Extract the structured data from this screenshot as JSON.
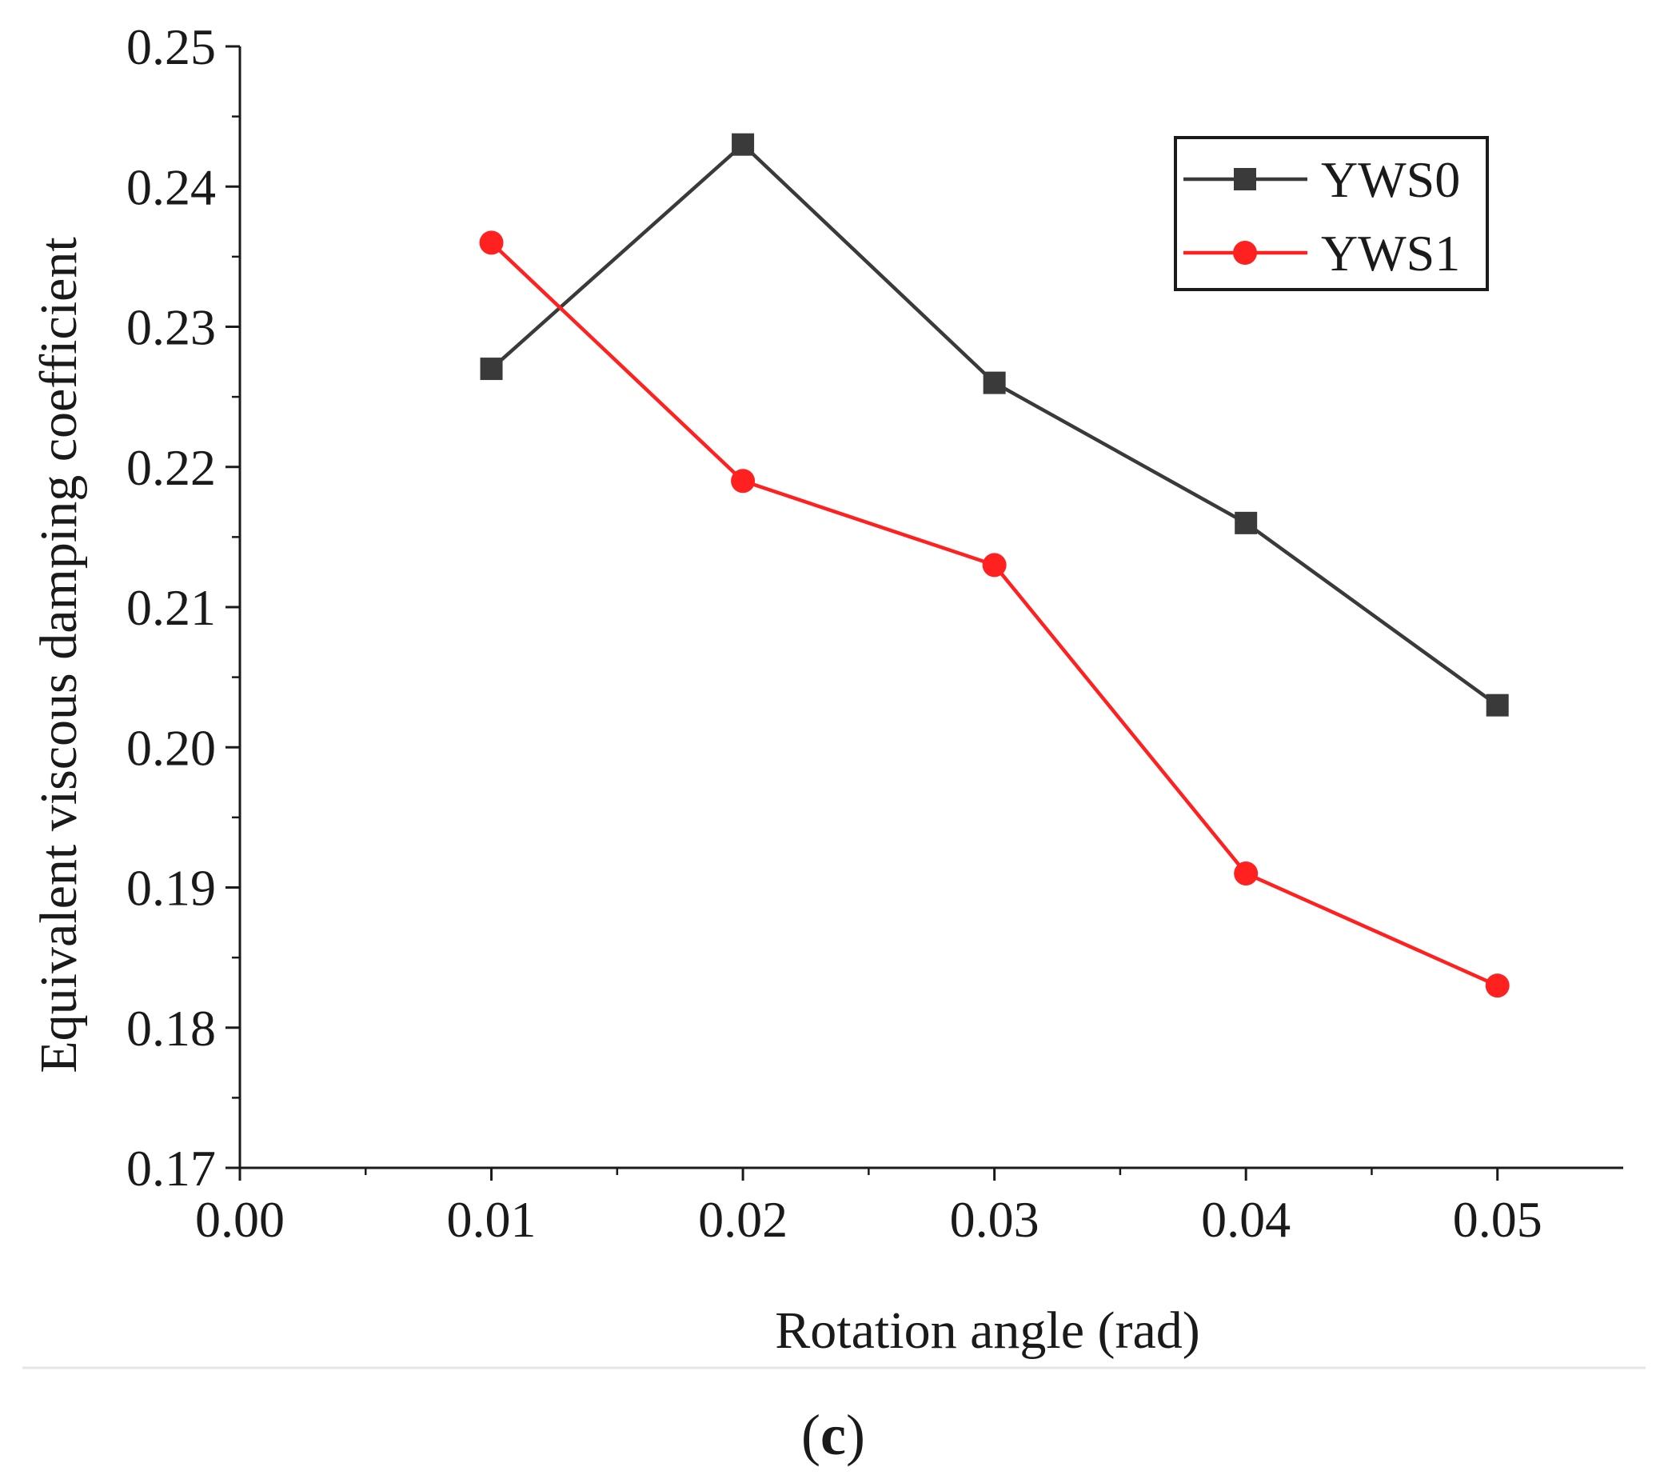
{
  "chart_data": {
    "type": "line",
    "xlabel": "Rotation angle (rad)",
    "ylabel": "Equivalent viscous damping coefficient",
    "xlim": [
      0.0,
      0.055
    ],
    "ylim": [
      0.17,
      0.25
    ],
    "xticks": [
      0.0,
      0.01,
      0.02,
      0.03,
      0.04,
      0.05
    ],
    "xtick_labels": [
      "0.00",
      "0.01",
      "0.02",
      "0.03",
      "0.04",
      "0.05"
    ],
    "yticks": [
      0.17,
      0.18,
      0.19,
      0.2,
      0.21,
      0.22,
      0.23,
      0.24,
      0.25
    ],
    "ytick_labels": [
      "0.17",
      "0.18",
      "0.19",
      "0.20",
      "0.21",
      "0.22",
      "0.23",
      "0.24",
      "0.25"
    ],
    "x": [
      0.01,
      0.02,
      0.03,
      0.04,
      0.05
    ],
    "series": [
      {
        "name": "YWS0",
        "color": "#3a3a3a",
        "marker": "square",
        "values": [
          0.227,
          0.243,
          0.226,
          0.216,
          0.203
        ]
      },
      {
        "name": "YWS1",
        "color": "#ff2020",
        "marker": "circle",
        "values": [
          0.236,
          0.219,
          0.213,
          0.191,
          0.183
        ]
      }
    ],
    "legend_position": "top-right",
    "grid": false
  },
  "panel_label": "c"
}
